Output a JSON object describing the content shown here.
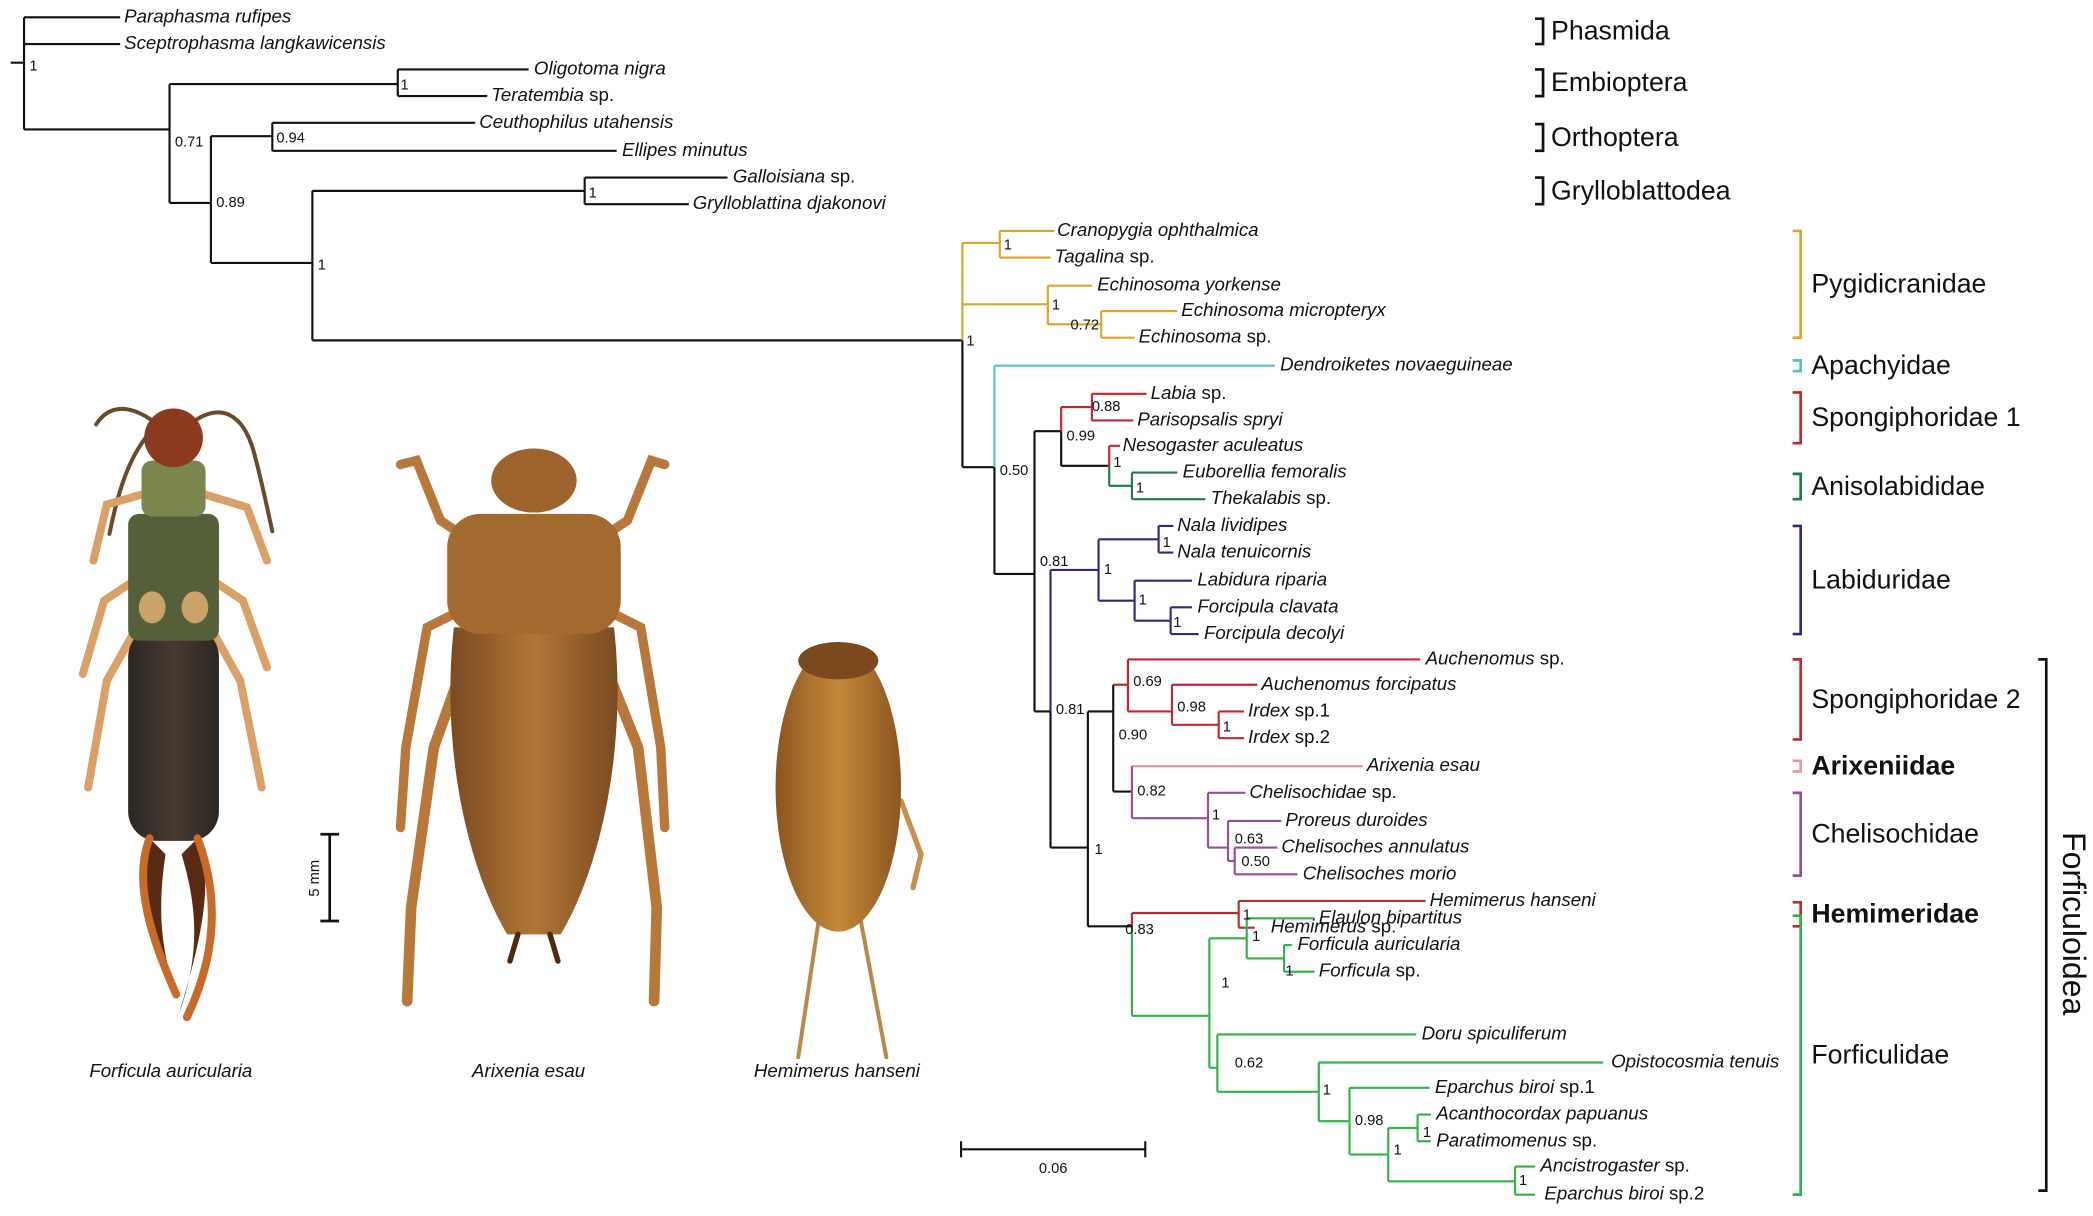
{
  "taxa": [
    {
      "name": "Paraphasma rufipes"
    },
    {
      "name": "Sceptrophasma langkawicensis"
    },
    {
      "name": "Oligotoma nigra"
    },
    {
      "name": "Teratembia",
      "qualifier": "sp."
    },
    {
      "name": "Ceuthophilus utahensis"
    },
    {
      "name": "Ellipes minutus"
    },
    {
      "name": "Galloisiana",
      "qualifier": "sp."
    },
    {
      "name": "Grylloblattina djakonovi"
    },
    {
      "name": "Cranopygia ophthalmica"
    },
    {
      "name": "Tagalina",
      "qualifier": "sp."
    },
    {
      "name": "Echinosoma yorkense"
    },
    {
      "name": "Echinosoma micropteryx"
    },
    {
      "name": "Echinosoma",
      "qualifier": "sp."
    },
    {
      "name": "Dendroiketes novaeguineae"
    },
    {
      "name": "Labia",
      "qualifier": "sp."
    },
    {
      "name": "Parisopsalis spryi"
    },
    {
      "name": "Nesogaster aculeatus"
    },
    {
      "name": "Euborellia femoralis"
    },
    {
      "name": "Thekalabis",
      "qualifier": "sp."
    },
    {
      "name": "Nala lividipes"
    },
    {
      "name": "Nala tenuicornis"
    },
    {
      "name": "Labidura riparia"
    },
    {
      "name": "Forcipula clavata"
    },
    {
      "name": "Forcipula decolyi"
    },
    {
      "name": "Auchenomus",
      "qualifier": "sp."
    },
    {
      "name": "Auchenomus forcipatus"
    },
    {
      "name": "Irdex",
      "qualifier": "sp.1"
    },
    {
      "name": "Irdex",
      "qualifier": "sp.2"
    },
    {
      "name": "Arixenia esau"
    },
    {
      "name": "Chelisochidae",
      "qualifier": "sp."
    },
    {
      "name": "Proreus duroides"
    },
    {
      "name": "Chelisoches annulatus"
    },
    {
      "name": "Chelisoches morio"
    },
    {
      "name": "Hemimerus hanseni"
    },
    {
      "name": "Hemimerus",
      "qualifier": "sp."
    },
    {
      "name": "Elaulon bipartitus"
    },
    {
      "name": "Forficula auricularia"
    },
    {
      "name": "Forficula",
      "qualifier": "sp."
    },
    {
      "name": "Doru spiculiferum"
    },
    {
      "name": "Opistocosmia tenuis"
    },
    {
      "name": "Eparchus biroi",
      "qualifier": "sp.1"
    },
    {
      "name": "Acanthocordax papuanus"
    },
    {
      "name": "Paratimomenus",
      "qualifier": "sp."
    },
    {
      "name": "Ancistrogaster",
      "qualifier": "sp."
    },
    {
      "name": "Eparchus biroi",
      "qualifier": "sp.2"
    }
  ],
  "supports": [
    "1",
    "1",
    "0.71",
    "0.94",
    "0.89",
    "1",
    "1",
    "1",
    "1",
    "0.72",
    "1",
    "0.50",
    "0.88",
    "0.99",
    "1",
    "1",
    "0.81",
    "1",
    "1",
    "1",
    "1",
    "0.81",
    "0.69",
    "0.98",
    "1",
    "0.90",
    "0.82",
    "1",
    "0.63",
    "0.50",
    "1",
    "1",
    "0.83",
    "1",
    "1",
    "1",
    "0.62",
    "1",
    "0.98",
    "1",
    "1",
    "1"
  ],
  "orders": [
    "Phasmida",
    "Embioptera",
    "Orthoptera",
    "Grylloblattodea"
  ],
  "families": [
    "Pygidicranidae",
    "Apachyidae",
    "Spongiphoridae 1",
    "Anisolabididae",
    "Labiduridae",
    "Spongiphoridae 2",
    "Arixeniidae",
    "Chelisochidae",
    "Hemimeridae",
    "Forficulidae"
  ],
  "superfamily": "Forficuloidea",
  "tree_scale": "0.06",
  "photo_scale": "5 mm",
  "photos": [
    "Forficula auricularia",
    "Arixenia esau",
    "Hemimerus hanseni"
  ]
}
